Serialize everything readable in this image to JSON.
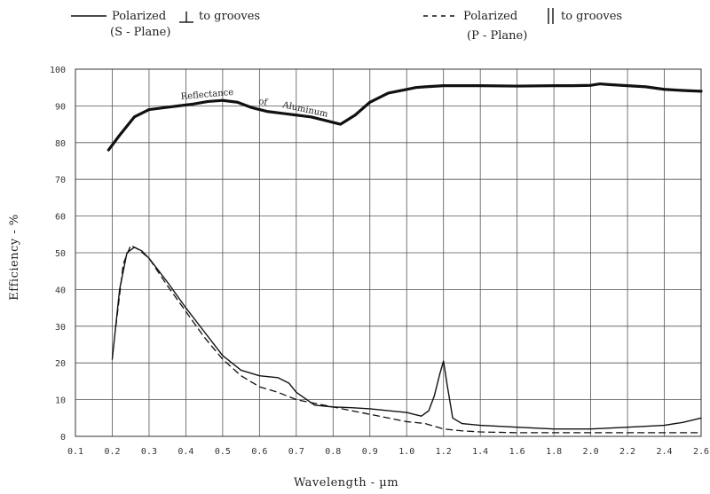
{
  "chart_data": {
    "type": "line",
    "xlabel": "Wavelength  -  µm",
    "ylabel": "Efficiency  -  %",
    "xlim": [
      0.1,
      2.6
    ],
    "ylim": [
      0,
      100
    ],
    "grid": true,
    "legend_placement": "top",
    "x_ticks": [
      "0.1",
      "0.2",
      "0.3",
      "0.4",
      "0.5",
      "0.6",
      "0.7",
      "0.8",
      "0.9",
      "1.0",
      "1.2",
      "1.4",
      "1.6",
      "1.8",
      "2.0",
      "2.2",
      "2.4",
      "2.6"
    ],
    "y_ticks": [
      "0",
      "10",
      "20",
      "30",
      "40",
      "50",
      "60",
      "70",
      "80",
      "90",
      "100"
    ],
    "legend": {
      "s_plane": {
        "line1a": "Polarized",
        "line1b": "to grooves",
        "line2": "(S  -  Plane)"
      },
      "p_plane": {
        "line1a": "Polarized",
        "line1b": "to grooves",
        "line2": "(P  -  Plane)"
      }
    },
    "annotation": {
      "words": [
        "Reflectance",
        "of",
        "Aluminum"
      ]
    },
    "series": [
      {
        "key": "reflectance",
        "style": "bold",
        "x": [
          0.19,
          0.22,
          0.26,
          0.3,
          0.34,
          0.38,
          0.42,
          0.46,
          0.5,
          0.54,
          0.58,
          0.62,
          0.66,
          0.7,
          0.74,
          0.78,
          0.82,
          0.86,
          0.9,
          0.95,
          1.0,
          1.05,
          1.1,
          1.2,
          1.3,
          1.4,
          1.6,
          1.8,
          1.9,
          2.0,
          2.05,
          2.1,
          2.2,
          2.3,
          2.4,
          2.5,
          2.6
        ],
        "y": [
          78,
          82,
          87,
          89,
          89.5,
          90,
          90.5,
          91.2,
          91.5,
          91,
          89.5,
          88.5,
          88,
          87.5,
          87,
          86,
          85,
          87.5,
          91,
          93.5,
          94.5,
          95,
          95.2,
          95.5,
          95.5,
          95.5,
          95.4,
          95.5,
          95.5,
          95.6,
          96,
          95.8,
          95.5,
          95.2,
          94.5,
          94.2,
          94
        ]
      },
      {
        "key": "s_plane",
        "name": "Polarized ⊥ to grooves (S - Plane)",
        "style": "solid",
        "x": [
          0.2,
          0.22,
          0.24,
          0.26,
          0.28,
          0.3,
          0.35,
          0.4,
          0.45,
          0.5,
          0.55,
          0.6,
          0.65,
          0.68,
          0.7,
          0.75,
          0.8,
          0.85,
          0.9,
          0.95,
          1.0,
          1.04,
          1.08,
          1.12,
          1.15,
          1.18,
          1.2,
          1.22,
          1.25,
          1.3,
          1.4,
          1.6,
          1.8,
          2.0,
          2.2,
          2.4,
          2.5,
          2.6
        ],
        "y": [
          21,
          40,
          50,
          51.5,
          50.5,
          48.5,
          42,
          35,
          28.5,
          22,
          18,
          16.5,
          16,
          14.5,
          12,
          8.5,
          8,
          7.8,
          7.5,
          7,
          6.5,
          6,
          5.5,
          7,
          11,
          17,
          20.5,
          14,
          5,
          3.5,
          3,
          2.5,
          2,
          2,
          2.5,
          3,
          3.8,
          5
        ]
      },
      {
        "key": "p_plane",
        "name": "Polarized ∥ to grooves (P - Plane)",
        "style": "dashed",
        "x": [
          0.21,
          0.23,
          0.25,
          0.27,
          0.3,
          0.35,
          0.4,
          0.45,
          0.5,
          0.55,
          0.6,
          0.65,
          0.7,
          0.75,
          0.8,
          0.85,
          0.9,
          0.95,
          1.0,
          1.1,
          1.2,
          1.3,
          1.4,
          1.6,
          1.8,
          2.0,
          2.2,
          2.4,
          2.6
        ],
        "y": [
          30,
          47,
          52,
          51,
          48.5,
          41,
          34,
          27,
          21,
          16.5,
          13.5,
          12,
          10,
          9,
          8,
          7,
          6,
          5,
          4,
          3.5,
          2,
          1.5,
          1.2,
          1,
          1,
          1,
          1,
          1,
          1
        ]
      }
    ]
  }
}
